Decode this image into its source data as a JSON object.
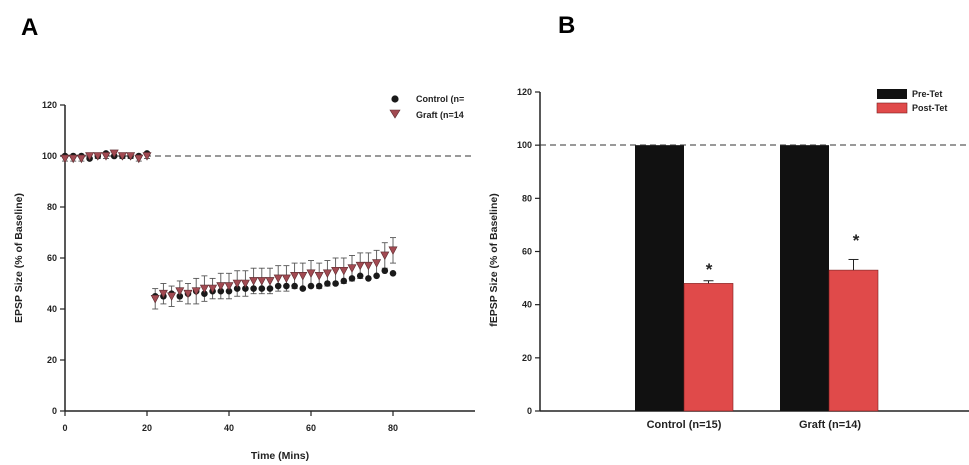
{
  "panels": {
    "a_letter": "A",
    "b_letter": "B"
  },
  "chart_data": [
    {
      "type": "scatter",
      "panel": "A",
      "title": "",
      "xlabel": "Time (Mins)",
      "ylabel": "EPSP Size (% of Baseline)",
      "xlim": [
        0,
        100
      ],
      "ylim": [
        0,
        120
      ],
      "xticks": [
        0,
        20,
        40,
        60,
        80
      ],
      "yticks": [
        0,
        20,
        40,
        60,
        80,
        100,
        120
      ],
      "baseline": 100,
      "legend_position": "top-right",
      "series": [
        {
          "name": "Control (n=",
          "marker": "circle",
          "color": "#1a1a1a",
          "x": [
            0,
            2,
            4,
            6,
            8,
            10,
            12,
            14,
            16,
            18,
            20,
            22,
            24,
            26,
            28,
            30,
            32,
            34,
            36,
            38,
            40,
            42,
            44,
            46,
            48,
            50,
            52,
            54,
            56,
            58,
            60,
            62,
            64,
            66,
            68,
            70,
            72,
            74,
            76,
            78,
            80
          ],
          "y": [
            100,
            100,
            100,
            99,
            100,
            101,
            100,
            100,
            100,
            100,
            101,
            45,
            45,
            46,
            45,
            46,
            47,
            46,
            47,
            47,
            47,
            48,
            48,
            48,
            48,
            48,
            49,
            49,
            49,
            48,
            49,
            49,
            50,
            50,
            51,
            52,
            53,
            52,
            53,
            55,
            54
          ],
          "err": [
            1,
            1,
            1,
            1,
            1,
            1,
            1,
            1,
            1,
            1,
            1,
            2,
            2,
            2,
            2,
            2,
            2,
            2,
            2,
            2,
            2,
            2,
            2,
            2,
            2,
            2,
            2,
            2,
            2,
            2,
            2,
            2,
            2,
            2,
            2,
            2,
            2,
            2,
            2,
            2,
            2
          ]
        },
        {
          "name": "Graft (n=14",
          "marker": "triangle-down",
          "color": "#a24a52",
          "x": [
            0,
            2,
            4,
            6,
            8,
            10,
            12,
            14,
            16,
            18,
            20,
            22,
            24,
            26,
            28,
            30,
            32,
            34,
            36,
            38,
            40,
            42,
            44,
            46,
            48,
            50,
            52,
            54,
            56,
            58,
            60,
            62,
            64,
            66,
            68,
            70,
            72,
            74,
            76,
            78,
            80
          ],
          "y": [
            99,
            99,
            99,
            100,
            100,
            100,
            101,
            100,
            100,
            99,
            100,
            44,
            46,
            45,
            47,
            46,
            47,
            48,
            48,
            49,
            49,
            50,
            50,
            51,
            51,
            51,
            52,
            52,
            53,
            53,
            54,
            53,
            54,
            55,
            55,
            56,
            57,
            57,
            58,
            61,
            63
          ],
          "err": [
            1,
            1,
            1,
            1,
            1,
            1,
            1,
            1,
            1,
            1,
            1,
            4,
            4,
            4,
            4,
            4,
            5,
            5,
            4,
            5,
            5,
            5,
            5,
            5,
            5,
            5,
            5,
            5,
            5,
            5,
            5,
            5,
            5,
            5,
            5,
            5,
            5,
            5,
            5,
            5,
            5
          ]
        }
      ]
    },
    {
      "type": "bar",
      "panel": "B",
      "title": "",
      "xlabel": "",
      "ylabel": "fEPSP Size (% of Baseline)",
      "categories": [
        "Control (n=15)",
        "Graft (n=14)"
      ],
      "ylim": [
        0,
        120
      ],
      "yticks": [
        0,
        20,
        40,
        60,
        80,
        100,
        120
      ],
      "baseline": 100,
      "legend_position": "top-right",
      "series": [
        {
          "name": "Pre-Tet",
          "color": "#111111",
          "values": [
            100,
            100
          ],
          "err": [
            0,
            0
          ]
        },
        {
          "name": "Post-Tet",
          "color": "#e04a4a",
          "values": [
            48,
            53
          ],
          "err": [
            1,
            4
          ]
        }
      ],
      "annotations": [
        "*",
        "*"
      ]
    }
  ]
}
